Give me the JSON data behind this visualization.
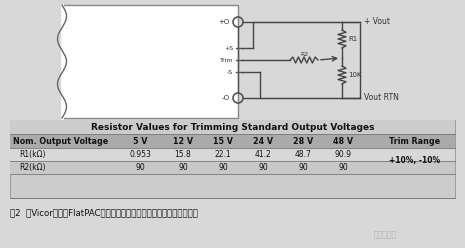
{
  "bg_color": "#d8d8d8",
  "table_title": "Resistor Values for Trimming Standard Output Voltages",
  "col_headers": [
    "Nom. Output Voltage",
    "5 V",
    "12 V",
    "15 V",
    "24 V",
    "28 V",
    "48 V",
    "Trim Range"
  ],
  "row1_label": "R1(kΩ)",
  "row2_label": "R2(kΩ)",
  "row1_values": [
    "0.953",
    "15.8",
    "22.1",
    "41.2",
    "48.7",
    "90.9"
  ],
  "row2_values": [
    "90",
    "90",
    "90",
    "90",
    "90",
    "90"
  ],
  "trim_range": "+10%, -10%",
  "caption": "图2  为Vicor公司的FlatPAC系列产品的标称输出电压调整电阵值及接线",
  "vout_label": "+ Vout",
  "vout_rtn_label": "Vout RTN",
  "r1_label": "R1",
  "pot_label": "10K",
  "plus_o_label": "+O",
  "minus_o_label": "-O",
  "trim_pin_labels": [
    "+S",
    "Trim",
    "-S"
  ],
  "r2_wire_label": "R2"
}
